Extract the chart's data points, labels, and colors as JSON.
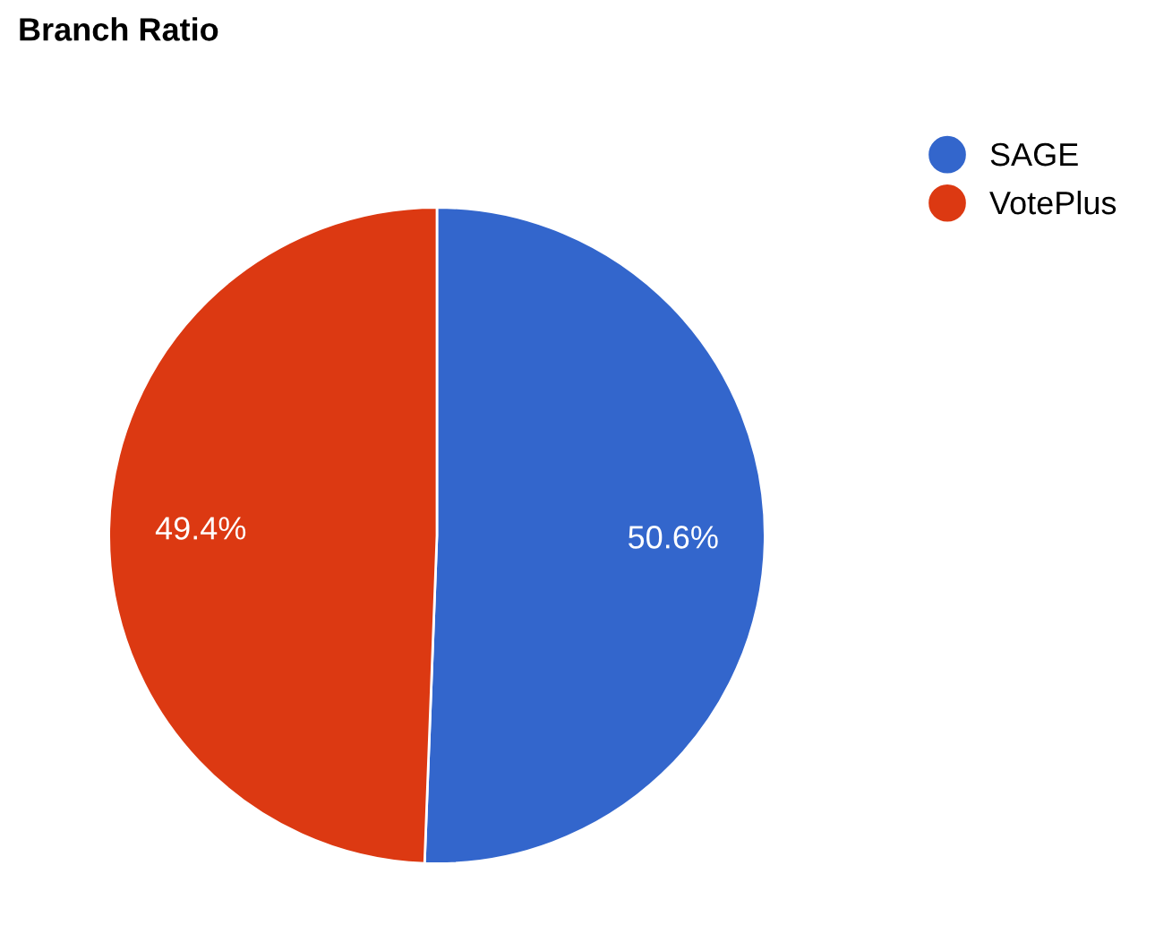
{
  "chart_data": {
    "type": "pie",
    "title": "Branch Ratio",
    "categories": [
      "SAGE",
      "VotePlus"
    ],
    "values": [
      50.6,
      49.4
    ],
    "colors": [
      "#3366cc",
      "#dc3912"
    ],
    "value_labels": [
      "50.6%",
      "49.4%"
    ],
    "legend": "top right"
  }
}
